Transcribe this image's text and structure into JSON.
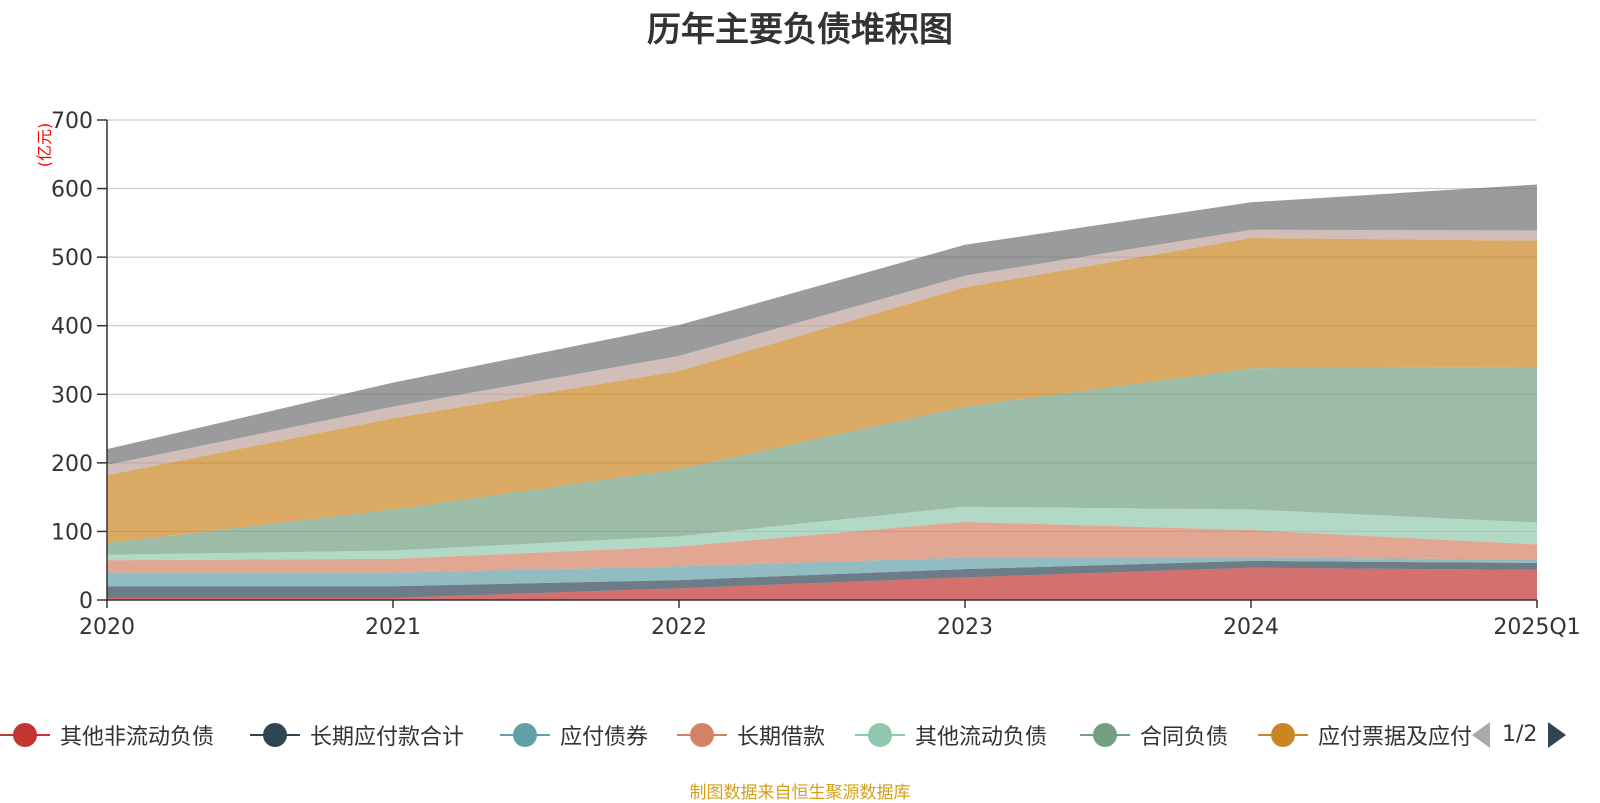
{
  "chart_data": {
    "type": "area",
    "stacked": true,
    "title": "历年主要负债堆积图",
    "ylabel": "(亿元)",
    "xlabel": "",
    "categories": [
      "2020",
      "2021",
      "2022",
      "2023",
      "2024",
      "2025Q1"
    ],
    "ylim": [
      0,
      700
    ],
    "yticks": [
      0,
      100,
      200,
      300,
      400,
      500,
      600,
      700
    ],
    "grid": true,
    "legend_position": "bottom",
    "series": [
      {
        "name": "其他非流动负债",
        "color": "#c23531",
        "values": [
          3,
          3,
          17,
          33,
          47,
          44
        ]
      },
      {
        "name": "长期应付款合计",
        "color": "#2f4554",
        "values": [
          17,
          17,
          12,
          12,
          10,
          10
        ]
      },
      {
        "name": "应付债券",
        "color": "#61a0a8",
        "values": [
          20,
          20,
          20,
          17,
          5,
          5
        ]
      },
      {
        "name": "长期借款",
        "color": "#d48265",
        "values": [
          18,
          20,
          29,
          52,
          40,
          22
        ]
      },
      {
        "name": "其他流动负债",
        "color": "#91c7ae",
        "values": [
          8,
          12,
          15,
          22,
          30,
          32
        ]
      },
      {
        "name": "合同负债",
        "color": "#749f83",
        "values": [
          17,
          60,
          98,
          146,
          206,
          226
        ]
      },
      {
        "name": "应付票据及应付",
        "color": "#ca8622",
        "values": [
          99,
          133,
          143,
          174,
          190,
          185
        ]
      },
      {
        "name": "",
        "color": "#bda29a",
        "values": [
          15,
          17,
          22,
          17,
          12,
          15
        ]
      },
      {
        "name": "",
        "color": "#6e7074",
        "values": [
          23,
          35,
          45,
          45,
          40,
          67
        ]
      }
    ]
  },
  "legend": {
    "page_indicator": "1/2"
  },
  "footer": {
    "source_note": "制图数据来自恒生聚源数据库"
  },
  "colors": {
    "axis": "#333333",
    "grid": "#cccccc",
    "unit_label": "#ff0000",
    "nav_disabled": "#aaaaaa",
    "nav_active": "#2f4554"
  }
}
